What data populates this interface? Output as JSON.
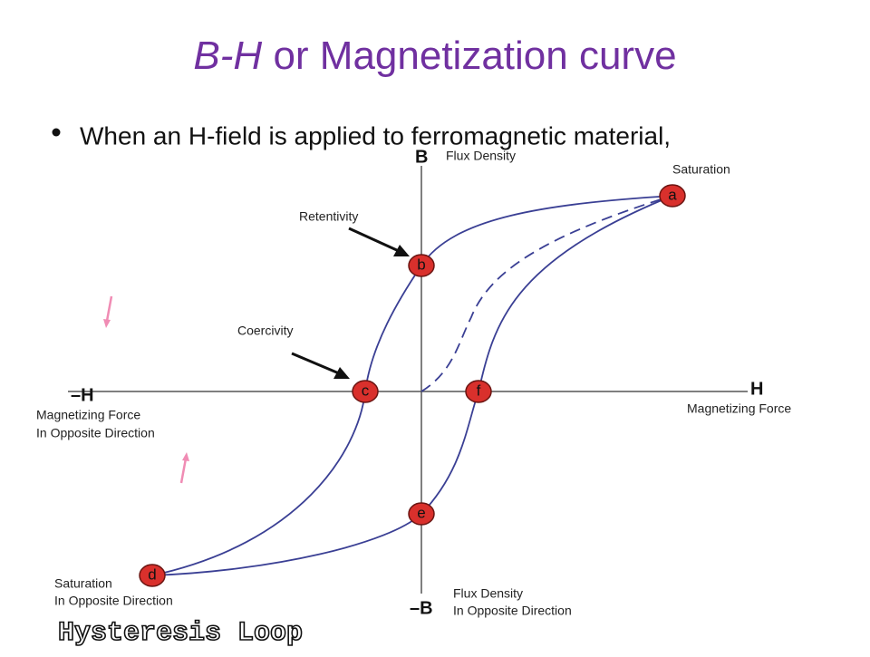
{
  "title": {
    "italic": "B-H",
    "rest": "or Magnetization curve"
  },
  "bullet": "When an H-field is applied to ferromagnetic material,",
  "diagram": {
    "axes": {
      "b": "B",
      "b_label": "Flux Density",
      "h": "H",
      "h_label": "Magnetizing Force",
      "neg_h": "–H",
      "neg_h_label": [
        "Magnetizing Force",
        "In Opposite Direction"
      ],
      "neg_b": "–B",
      "neg_b_label": [
        "Flux Density",
        "In Opposite Direction"
      ]
    },
    "points": [
      {
        "label": "a"
      },
      {
        "label": "b"
      },
      {
        "label": "c"
      },
      {
        "label": "f"
      },
      {
        "label": "e"
      },
      {
        "label": "d"
      }
    ],
    "annotations": {
      "saturation": "Saturation",
      "retentivity": "Retentivity",
      "coercivity": "Coercivity",
      "neg_saturation": [
        "Saturation",
        "In Opposite Direction"
      ]
    }
  },
  "caption": "Hysteresis Loop"
}
